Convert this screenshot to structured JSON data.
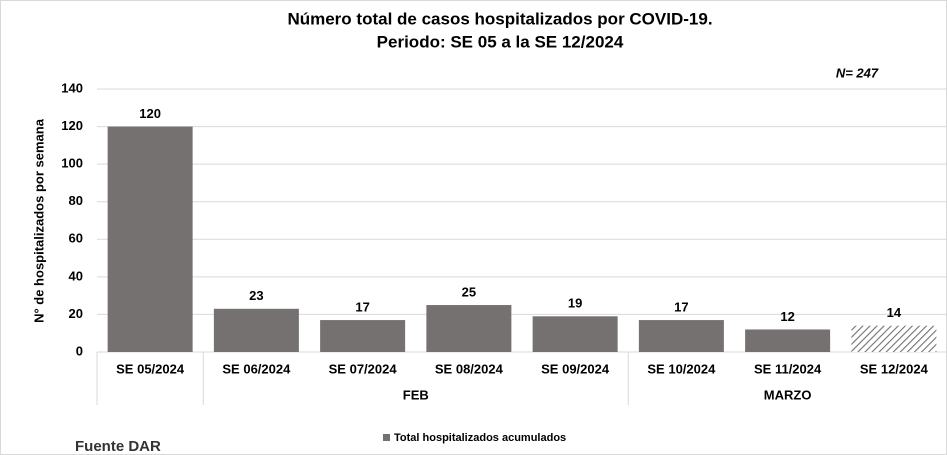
{
  "chart_data": {
    "type": "bar",
    "title": "Número total de casos hospitalizados por COVID-19.",
    "subtitle": "Periodo:  SE 05 a la SE 12/2024",
    "annotation": "N= 247",
    "source": "Fuente DAR",
    "y_label": "N° de hospitalizados por semana",
    "categories": [
      "SE 05/2024",
      "SE 06/2024",
      "SE 07/2024",
      "SE 08/2024",
      "SE 09/2024",
      "SE 10/2024",
      "SE 11/2024",
      "SE 12/2024"
    ],
    "category_groups": [
      null,
      "FEB",
      "FEB",
      "FEB",
      "FEB",
      "MARZO",
      "MARZO",
      "MARZO"
    ],
    "series": [
      {
        "name": "Total hospitalizados acumulados",
        "color": "#767171",
        "values": [
          120,
          23,
          17,
          25,
          19,
          17,
          12,
          14
        ],
        "patterns": [
          "solid",
          "solid",
          "solid",
          "solid",
          "solid",
          "solid",
          "solid",
          "hatch"
        ]
      }
    ],
    "ylim": [
      0,
      140
    ],
    "yticks": [
      0,
      20,
      40,
      60,
      80,
      100,
      120,
      140
    ],
    "grid": true,
    "legend": "bottom"
  }
}
